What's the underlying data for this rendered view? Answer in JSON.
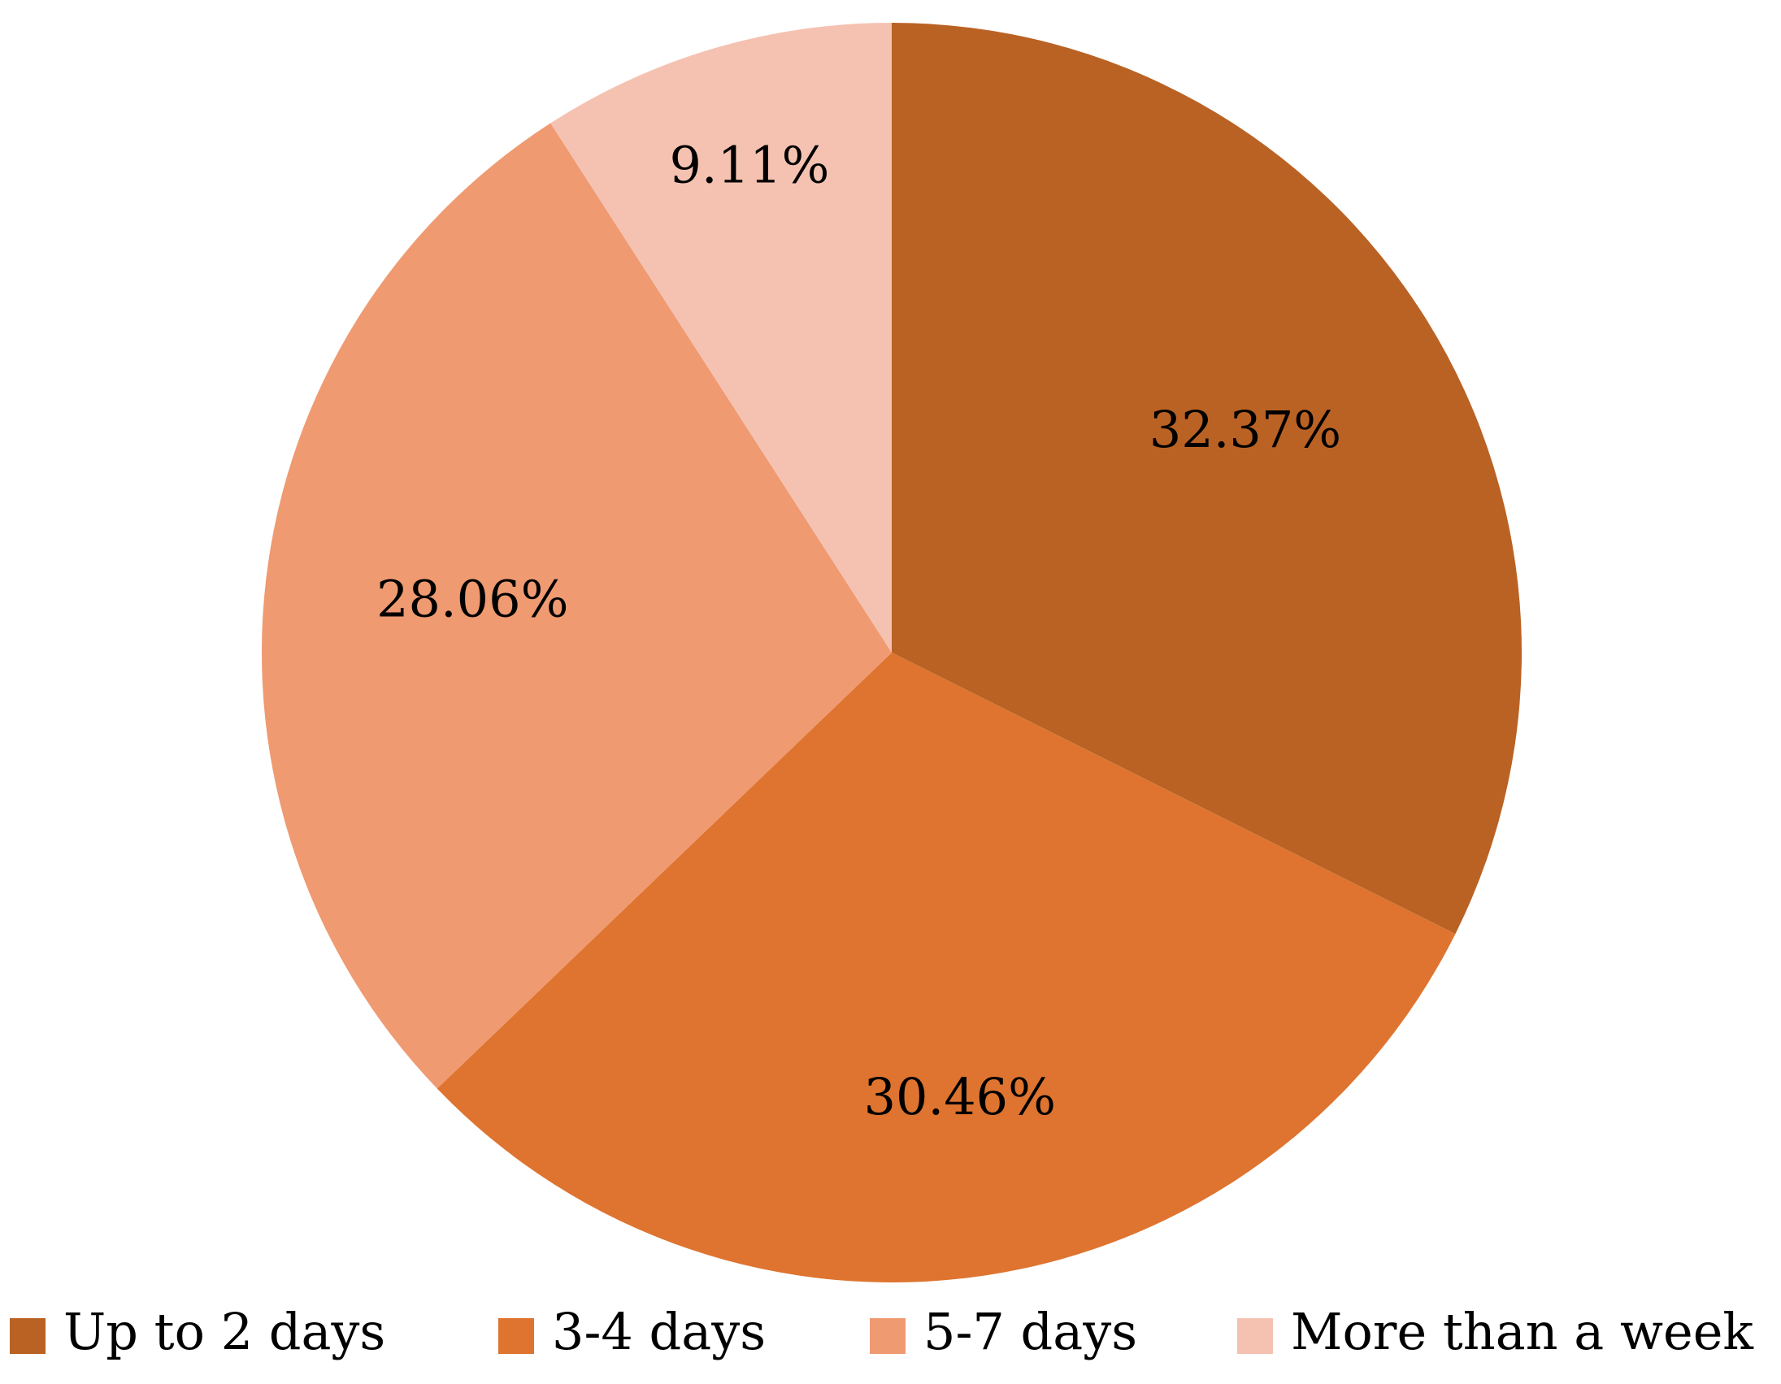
{
  "chart_data": {
    "type": "pie",
    "categories": [
      "Up to 2 days",
      "3-4 days",
      "5-7 days",
      "More than a week"
    ],
    "values": [
      32.37,
      30.46,
      28.06,
      9.11
    ],
    "data_labels": [
      "32.37%",
      "30.46%",
      "28.06%",
      "9.11%"
    ],
    "colors": [
      "#BA6224",
      "#DE742F",
      "#EF9A71",
      "#F5C2B2"
    ],
    "start_angle": "12 o'clock",
    "direction": "clockwise",
    "legend_position": "bottom"
  }
}
